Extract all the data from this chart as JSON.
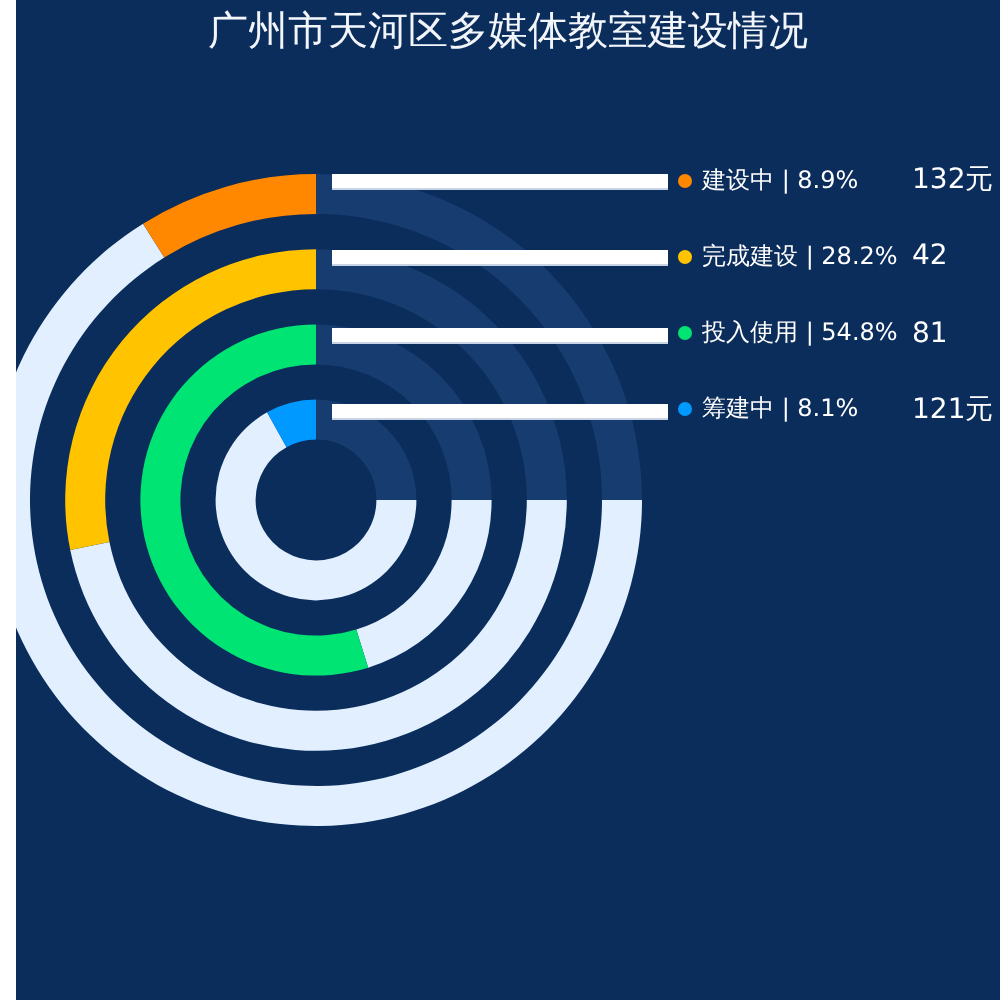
{
  "chart_data": {
    "type": "donut",
    "title": "广州市天河区多媒体教室建设情况",
    "categories": [
      null,
      null,
      null
    ],
    "series": [
      {
        "name": "建设中 | 8.9%",
        "color": "#ff8800",
        "colors": [
          "#e1efff",
          "#ff8800",
          "#163c70"
        ],
        "values": [
          66.1,
          8.9,
          25
        ]
      },
      {
        "name": "完成建设 | 28.2%",
        "color": "#ffc300",
        "colors": [
          "#e1efff",
          "#ffc300",
          "#163c70"
        ],
        "values": [
          46.8,
          28.2,
          25
        ]
      },
      {
        "name": "投入使用 | 54.8%",
        "color": "#00e473",
        "colors": [
          "#e1efff",
          "#00e473",
          "#163c70"
        ],
        "values": [
          20.2,
          54.8,
          25
        ]
      },
      {
        "name": "筹建中 | 8.1%",
        "color": "#0099ff",
        "colors": [
          "#e1efff",
          "#0099ff",
          "#163c70"
        ],
        "values": [
          66.9,
          8.1,
          25
        ]
      }
    ],
    "annotations": [
      "132元",
      "42",
      "81",
      "121元"
    ],
    "legend": "right"
  }
}
